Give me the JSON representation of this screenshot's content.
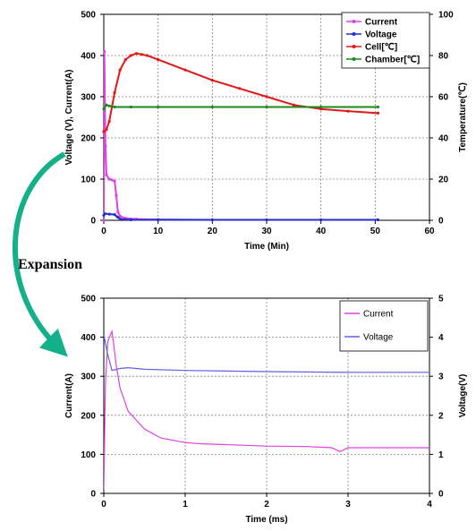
{
  "annotation": {
    "label": "Expansion"
  },
  "colors": {
    "current": "#e040e0",
    "voltage": "#2030c8",
    "cell": "#e01818",
    "chamber": "#1a8a1a",
    "arrow": "#14b08a",
    "grid": "#808080"
  },
  "chart_data": [
    {
      "type": "line",
      "xlabel": "Time (Min)",
      "ylabel": "Voltage (V), Current(A)",
      "ylabel_right": "Temperature(℃)",
      "xlim": [
        0,
        60
      ],
      "ylim": [
        0,
        500
      ],
      "ylim_right": [
        0,
        100
      ],
      "xticks": [
        "0",
        "10",
        "20",
        "30",
        "40",
        "50",
        "60"
      ],
      "yticks": [
        "0",
        "100",
        "200",
        "300",
        "400",
        "500"
      ],
      "yticks_right": [
        "0",
        "20",
        "40",
        "60",
        "80",
        "100"
      ],
      "legend_position": "top-right",
      "grid": true,
      "series": [
        {
          "name": "Current",
          "axis": "left",
          "color": "#e040e0",
          "marker": "dot",
          "x": [
            0,
            0.1,
            0.3,
            0.5,
            1,
            1.5,
            2,
            2.3,
            2.6,
            3,
            4,
            6,
            10,
            20,
            30,
            40,
            50.5
          ],
          "y": [
            0,
            410,
            180,
            110,
            100,
            98,
            95,
            60,
            20,
            10,
            5,
            3,
            2,
            1,
            1,
            1,
            1
          ]
        },
        {
          "name": "Voltage",
          "axis": "left",
          "color": "#2030c8",
          "marker": "dot",
          "x": [
            0,
            0.2,
            1,
            2,
            2.5,
            3,
            5,
            10,
            20,
            30,
            40,
            50.5
          ],
          "y": [
            12,
            16,
            15,
            14,
            8,
            3,
            1,
            1,
            1,
            1,
            1,
            1
          ]
        },
        {
          "name": "Cell[℃]",
          "axis": "right",
          "color": "#e01818",
          "marker": "dot",
          "x": [
            0,
            0.5,
            1,
            2,
            3,
            4,
            5,
            6,
            7,
            8,
            10,
            15,
            20,
            25,
            30,
            35,
            40,
            45,
            50.5
          ],
          "y": [
            43,
            44,
            48,
            62,
            73,
            78,
            80,
            81,
            80.5,
            80,
            78,
            73,
            68,
            64,
            60,
            56,
            54,
            53,
            52
          ]
        },
        {
          "name": "Chamber[℃]",
          "axis": "right",
          "color": "#1a8a1a",
          "marker": "dot",
          "x": [
            0,
            0.5,
            1,
            2,
            5,
            10,
            20,
            30,
            40,
            50.5
          ],
          "y": [
            54,
            56,
            55.5,
            55,
            55,
            55,
            55,
            55,
            55,
            55
          ]
        }
      ]
    },
    {
      "type": "line",
      "xlabel": "Time (ms)",
      "ylabel": "Current(A)",
      "ylabel_right": "Voltage(V)",
      "xlim": [
        0,
        4
      ],
      "ylim": [
        0,
        500
      ],
      "ylim_right": [
        0,
        5
      ],
      "xticks": [
        "0",
        "1",
        "2",
        "3",
        "4"
      ],
      "yticks": [
        "0",
        "100",
        "200",
        "300",
        "400",
        "500"
      ],
      "yticks_right": [
        "0",
        "1",
        "2",
        "3",
        "4",
        "5"
      ],
      "legend_position": "top-right",
      "grid": true,
      "series": [
        {
          "name": "Current",
          "axis": "left",
          "color": "#e040e0",
          "x": [
            0,
            0.02,
            0.05,
            0.08,
            0.1,
            0.12,
            0.15,
            0.2,
            0.3,
            0.5,
            0.7,
            1.0,
            1.2,
            1.5,
            2.0,
            2.5,
            2.8,
            2.9,
            3.0,
            3.5,
            4.0
          ],
          "y": [
            10,
            280,
            390,
            405,
            415,
            385,
            330,
            270,
            210,
            165,
            142,
            130,
            127,
            125,
            121,
            120,
            117,
            107,
            117,
            117,
            117
          ]
        },
        {
          "name": "Voltage",
          "axis": "right",
          "color": "#6060e0",
          "x": [
            0,
            0.05,
            0.1,
            0.2,
            0.3,
            0.5,
            1.0,
            2.0,
            3.0,
            4.0
          ],
          "y": [
            4.05,
            3.55,
            3.15,
            3.2,
            3.22,
            3.18,
            3.15,
            3.12,
            3.1,
            3.1
          ]
        }
      ]
    }
  ]
}
